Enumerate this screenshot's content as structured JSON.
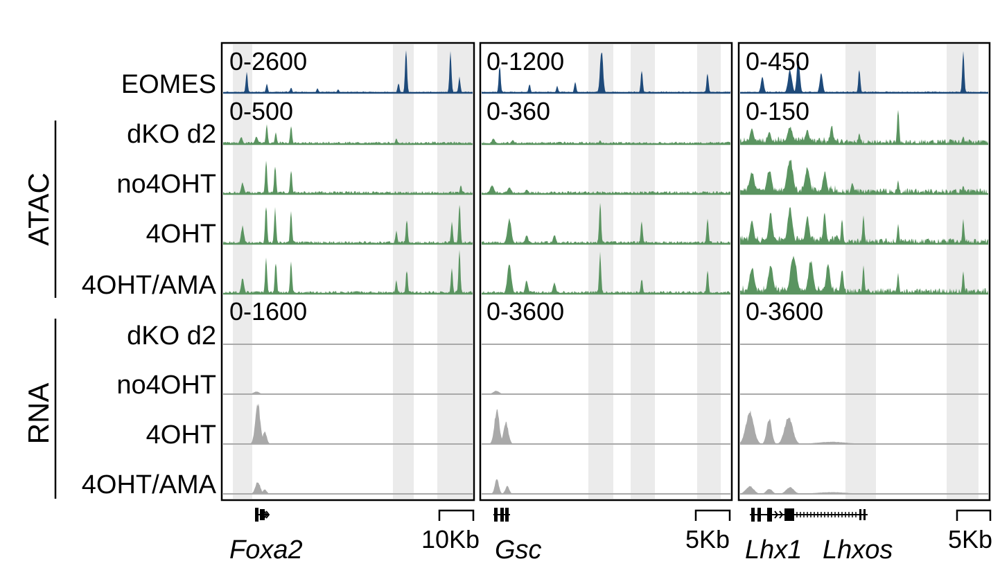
{
  "row_labels": [
    "EOMES",
    "dKO d2",
    "no4OHT",
    "4OHT",
    "4OHT/AMA",
    "dKO d2",
    "no4OHT",
    "4OHT",
    "4OHT/AMA"
  ],
  "group_labels": [
    "ATAC",
    "RNA"
  ],
  "colors": {
    "eomes": "#1e4a7a",
    "atac": "#5a9460",
    "rna": "#a9a9a9",
    "highlight": "#ebebeb"
  },
  "panels": [
    {
      "scales": [
        "0-2600",
        "0-500",
        "0-1600"
      ],
      "genes": [
        "Foxa2"
      ],
      "scale_bar": "10Kb"
    },
    {
      "scales": [
        "0-1200",
        "0-360",
        "0-3600"
      ],
      "genes": [
        "Gsc"
      ],
      "scale_bar": "5Kb"
    },
    {
      "scales": [
        "0-450",
        "0-150",
        "0-3600"
      ],
      "genes": [
        "Lhx1",
        "Lhxos"
      ],
      "scale_bar": "5Kb"
    }
  ]
}
